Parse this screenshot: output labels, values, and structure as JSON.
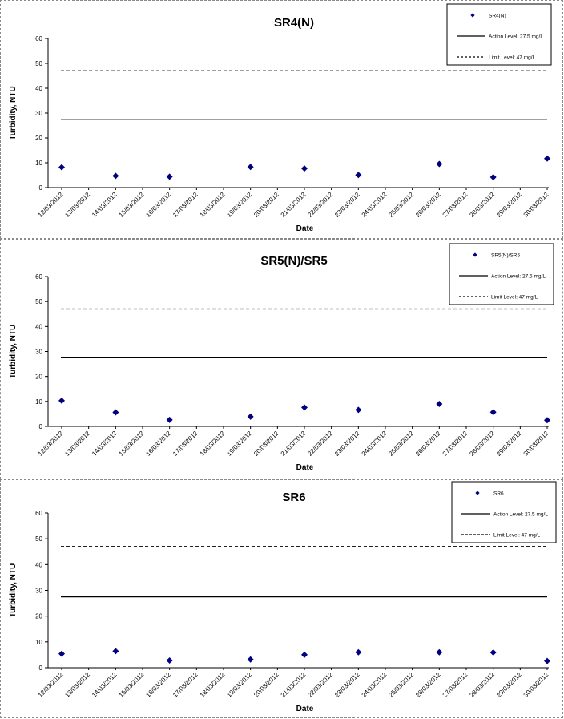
{
  "chart_data": [
    {
      "type": "scatter",
      "title": "SR4(N)",
      "xlabel": "Date",
      "ylabel": "Turbidity, NTU",
      "ylim": [
        0,
        60
      ],
      "yticks": [
        0,
        10,
        20,
        30,
        40,
        50,
        60
      ],
      "x_ticks": [
        "12/03/2012",
        "13/03/2012",
        "14/03/2012",
        "15/03/2012",
        "16/03/2012",
        "17/03/2012",
        "18/03/2012",
        "19/03/2012",
        "20/03/2012",
        "21/03/2012",
        "22/03/2012",
        "23/03/2012",
        "24/03/2012",
        "25/03/2012",
        "26/03/2012",
        "27/03/2012",
        "28/03/2012",
        "29/03/2012",
        "30/03/2012"
      ],
      "grid": false,
      "legend_position": "top-right",
      "series": [
        {
          "name": "SR4(N)",
          "kind": "points",
          "color": "#000080",
          "points": [
            {
              "x": "12/03/2012",
              "y": 8.2
            },
            {
              "x": "14/03/2012",
              "y": 4.7
            },
            {
              "x": "16/03/2012",
              "y": 4.4
            },
            {
              "x": "19/03/2012",
              "y": 8.3
            },
            {
              "x": "21/03/2012",
              "y": 7.7
            },
            {
              "x": "23/03/2012",
              "y": 5.1
            },
            {
              "x": "26/03/2012",
              "y": 9.5
            },
            {
              "x": "28/03/2012",
              "y": 4.2
            },
            {
              "x": "30/03/2012",
              "y": 11.7
            }
          ]
        },
        {
          "name": "Action Level: 27.5 mg/L",
          "kind": "hline",
          "style": "solid",
          "y": 27.5,
          "color": "#000000"
        },
        {
          "name": "Limit Level: 47 mg/L",
          "kind": "hline",
          "style": "dashed",
          "y": 47,
          "color": "#000000"
        }
      ]
    },
    {
      "type": "scatter",
      "title": "SR5(N)/SR5",
      "xlabel": "Date",
      "ylabel": "Turbidity, NTU",
      "ylim": [
        0,
        60
      ],
      "yticks": [
        0,
        10,
        20,
        30,
        40,
        50,
        60
      ],
      "x_ticks": [
        "12/03/2012",
        "13/03/2012",
        "14/03/2012",
        "15/03/2012",
        "16/03/2012",
        "17/03/2012",
        "18/03/2012",
        "19/03/2012",
        "20/03/2012",
        "21/03/2012",
        "22/03/2012",
        "23/03/2012",
        "24/03/2012",
        "25/03/2012",
        "26/03/2012",
        "27/03/2012",
        "28/03/2012",
        "29/03/2012",
        "30/03/2012"
      ],
      "grid": false,
      "legend_position": "top-right",
      "series": [
        {
          "name": "SR5(N)/SR5",
          "kind": "points",
          "color": "#000080",
          "points": [
            {
              "x": "12/03/2012",
              "y": 10.3
            },
            {
              "x": "14/03/2012",
              "y": 5.6
            },
            {
              "x": "16/03/2012",
              "y": 2.6
            },
            {
              "x": "19/03/2012",
              "y": 3.9
            },
            {
              "x": "21/03/2012",
              "y": 7.6
            },
            {
              "x": "23/03/2012",
              "y": 6.6
            },
            {
              "x": "26/03/2012",
              "y": 9.0
            },
            {
              "x": "28/03/2012",
              "y": 5.7
            },
            {
              "x": "30/03/2012",
              "y": 2.5
            }
          ]
        },
        {
          "name": "Action Level: 27.5 mg/L",
          "kind": "hline",
          "style": "solid",
          "y": 27.5,
          "color": "#000000"
        },
        {
          "name": "Limit Level: 47 mg/L",
          "kind": "hline",
          "style": "dashed",
          "y": 47,
          "color": "#000000"
        }
      ]
    },
    {
      "type": "scatter",
      "title": "SR6",
      "xlabel": "Date",
      "ylabel": "Turbidity, NTU",
      "ylim": [
        0,
        60
      ],
      "yticks": [
        0,
        10,
        20,
        30,
        40,
        50,
        60
      ],
      "x_ticks": [
        "12/03/2012",
        "13/03/2012",
        "14/03/2012",
        "15/03/2012",
        "16/03/2012",
        "17/03/2012",
        "18/03/2012",
        "19/03/2012",
        "20/03/2012",
        "21/03/2012",
        "22/03/2012",
        "23/03/2012",
        "24/03/2012",
        "25/03/2012",
        "26/03/2012",
        "27/03/2012",
        "28/03/2012",
        "29/03/2012",
        "30/03/2012"
      ],
      "grid": false,
      "legend_position": "top-right",
      "series": [
        {
          "name": "SR6",
          "kind": "points",
          "color": "#000080",
          "points": [
            {
              "x": "12/03/2012",
              "y": 5.4
            },
            {
              "x": "14/03/2012",
              "y": 6.4
            },
            {
              "x": "16/03/2012",
              "y": 2.8
            },
            {
              "x": "19/03/2012",
              "y": 3.2
            },
            {
              "x": "21/03/2012",
              "y": 5.0
            },
            {
              "x": "23/03/2012",
              "y": 6.0
            },
            {
              "x": "26/03/2012",
              "y": 6.0
            },
            {
              "x": "28/03/2012",
              "y": 5.9
            },
            {
              "x": "30/03/2012",
              "y": 2.6
            }
          ]
        },
        {
          "name": "Action Level: 27.5 mg/L",
          "kind": "hline",
          "style": "solid",
          "y": 27.5,
          "color": "#000000"
        },
        {
          "name": "Limit Level: 47 mg/L",
          "kind": "hline",
          "style": "dashed",
          "y": 47,
          "color": "#000000"
        }
      ]
    }
  ]
}
